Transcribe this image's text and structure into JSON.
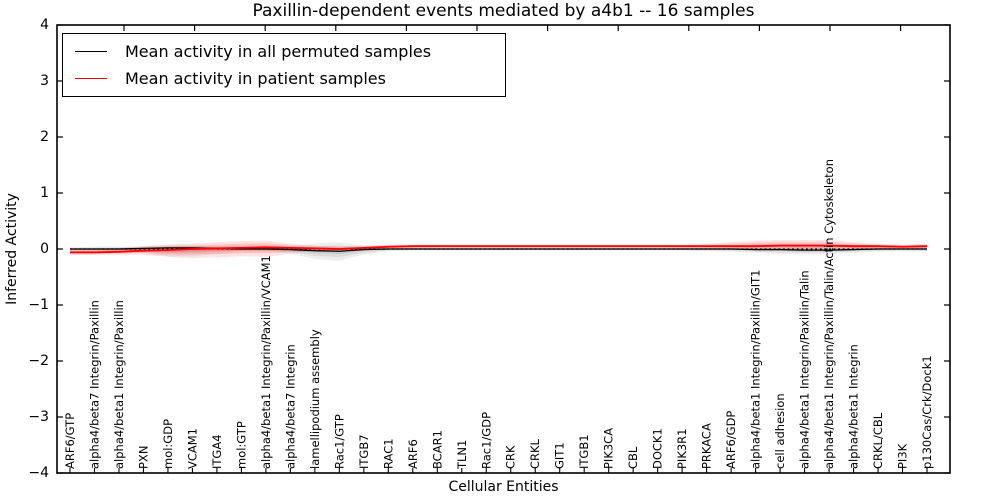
{
  "chart_data": {
    "type": "line",
    "title": "Paxillin-dependent events mediated by a4b1 -- 16 samples",
    "xlabel": "Cellular Entities",
    "ylabel": "Inferred Activity",
    "ylim": [
      -4,
      4
    ],
    "yticks": [
      -4,
      -3,
      -2,
      -1,
      0,
      1,
      2,
      3,
      4
    ],
    "grid": false,
    "legend_position": "upper left",
    "zero_reference_line": 0,
    "tick_direction": "in",
    "categories": [
      "ARF6/GTP",
      "alpha4/beta7 Integrin/Paxillin",
      "alpha4/beta1 Integrin/Paxillin",
      "PXN",
      "mol:GDP",
      "VCAM1",
      "ITGA4",
      "mol:GTP",
      "alpha4/beta1 Integrin/Paxillin/VCAM1",
      "alpha4/beta7 Integrin",
      "lamellipodium assembly",
      "Rac1/GTP",
      "ITGB7",
      "RAC1",
      "ARF6",
      "BCAR1",
      "TLN1",
      "Rac1/GDP",
      "CRK",
      "CRKL",
      "GIT1",
      "ITGB1",
      "PIK3CA",
      "CBL",
      "DOCK1",
      "PIK3R1",
      "PRKACA",
      "ARF6/GDP",
      "alpha4/beta1 Integrin/Paxillin/GIT1",
      "cell adhesion",
      "alpha4/beta1 Integrin/Paxillin/Talin",
      "alpha4/beta1 Integrin/Paxillin/Talin/Actin Cytoskeleton",
      "alpha4/beta1 Integrin",
      "CRKL/CBL",
      "PI3K",
      "p130Cas/Crk/Dock1"
    ],
    "series": [
      {
        "name": "Mean activity in all permuted samples",
        "color": "#000000",
        "band_color": "#555555",
        "values": [
          0,
          0,
          0,
          0.01,
          0.02,
          0.02,
          0.01,
          0,
          0,
          -0.01,
          -0.03,
          -0.04,
          -0.01,
          0,
          0,
          0,
          0,
          0,
          0,
          0,
          0,
          0,
          0,
          0,
          0,
          0,
          0,
          0,
          -0.01,
          -0.01,
          -0.02,
          -0.02,
          -0.01,
          0,
          0,
          0
        ],
        "band_low": [
          -0.04,
          -0.05,
          -0.05,
          -0.07,
          -0.13,
          -0.13,
          -0.09,
          -0.05,
          -0.05,
          -0.08,
          -0.18,
          -0.21,
          -0.1,
          -0.04,
          -0.03,
          -0.03,
          -0.03,
          -0.03,
          -0.03,
          -0.03,
          -0.03,
          -0.03,
          -0.03,
          -0.03,
          -0.03,
          -0.03,
          -0.04,
          -0.05,
          -0.07,
          -0.09,
          -0.1,
          -0.09,
          -0.07,
          -0.05,
          -0.04,
          -0.05
        ],
        "band_high": [
          0.03,
          0.04,
          0.04,
          0.05,
          0.07,
          0.07,
          0.05,
          0.04,
          0.04,
          0.05,
          0.1,
          0.12,
          0.06,
          0.03,
          0.02,
          0.02,
          0.02,
          0.02,
          0.02,
          0.02,
          0.02,
          0.02,
          0.02,
          0.02,
          0.02,
          0.03,
          0.03,
          0.04,
          0.05,
          0.05,
          0.06,
          0.06,
          0.05,
          0.04,
          0.03,
          0.04
        ]
      },
      {
        "name": "Mean activity in patient samples",
        "color": "#ff0000",
        "band_color": "#ff2222",
        "values": [
          -0.06,
          -0.06,
          -0.05,
          -0.03,
          -0.02,
          0,
          0.01,
          0.02,
          0.03,
          0.02,
          0.01,
          0,
          0.02,
          0.04,
          0.05,
          0.05,
          0.05,
          0.05,
          0.05,
          0.05,
          0.05,
          0.05,
          0.05,
          0.05,
          0.05,
          0.05,
          0.05,
          0.05,
          0.05,
          0.06,
          0.06,
          0.06,
          0.05,
          0.05,
          0.04,
          0.05
        ],
        "band_low": [
          -0.11,
          -0.11,
          -0.1,
          -0.1,
          -0.14,
          -0.16,
          -0.15,
          -0.13,
          -0.14,
          -0.08,
          -0.04,
          -0.04,
          -0.02,
          0,
          0.01,
          0.02,
          0.02,
          0.02,
          0.02,
          0.02,
          0.02,
          0.02,
          0.02,
          0.02,
          0.02,
          0.02,
          0.01,
          0,
          -0.02,
          -0.03,
          -0.04,
          -0.03,
          -0.02,
          0,
          0,
          0
        ],
        "band_high": [
          0,
          0.01,
          0.02,
          0.05,
          0.08,
          0.1,
          0.12,
          0.14,
          0.15,
          0.1,
          0.06,
          0.05,
          0.06,
          0.08,
          0.08,
          0.08,
          0.08,
          0.08,
          0.08,
          0.08,
          0.08,
          0.08,
          0.08,
          0.08,
          0.08,
          0.08,
          0.09,
          0.12,
          0.15,
          0.16,
          0.16,
          0.16,
          0.12,
          0.09,
          0.08,
          0.09
        ]
      }
    ]
  }
}
